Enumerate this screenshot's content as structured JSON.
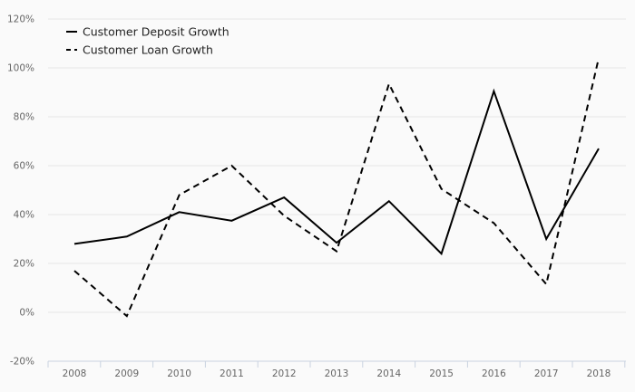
{
  "chart_data": {
    "type": "line",
    "categories": [
      "2008",
      "2009",
      "2010",
      "2011",
      "2012",
      "2013",
      "2014",
      "2015",
      "2016",
      "2017",
      "2018"
    ],
    "series": [
      {
        "name": "Customer Deposit Growth",
        "dash": "solid",
        "color": "#000000",
        "values": [
          28,
          31,
          41,
          37.5,
          47,
          28.5,
          45.5,
          24,
          90.5,
          30,
          67
        ]
      },
      {
        "name": "Customer Loan Growth",
        "dash": "dashed",
        "color": "#000000",
        "values": [
          17,
          -1.5,
          48,
          60,
          39.5,
          25,
          93.5,
          50.5,
          36.5,
          11.5,
          104
        ]
      }
    ],
    "ylim": [
      -20,
      120
    ],
    "yticks": [
      -20,
      0,
      20,
      40,
      60,
      80,
      100,
      120
    ],
    "ytick_labels": [
      "-20%",
      "0%",
      "20%",
      "40%",
      "60%",
      "80%",
      "100%",
      "120%"
    ],
    "title": "",
    "xlabel": "",
    "ylabel": "",
    "grid": true,
    "legend_position": "top-left"
  }
}
